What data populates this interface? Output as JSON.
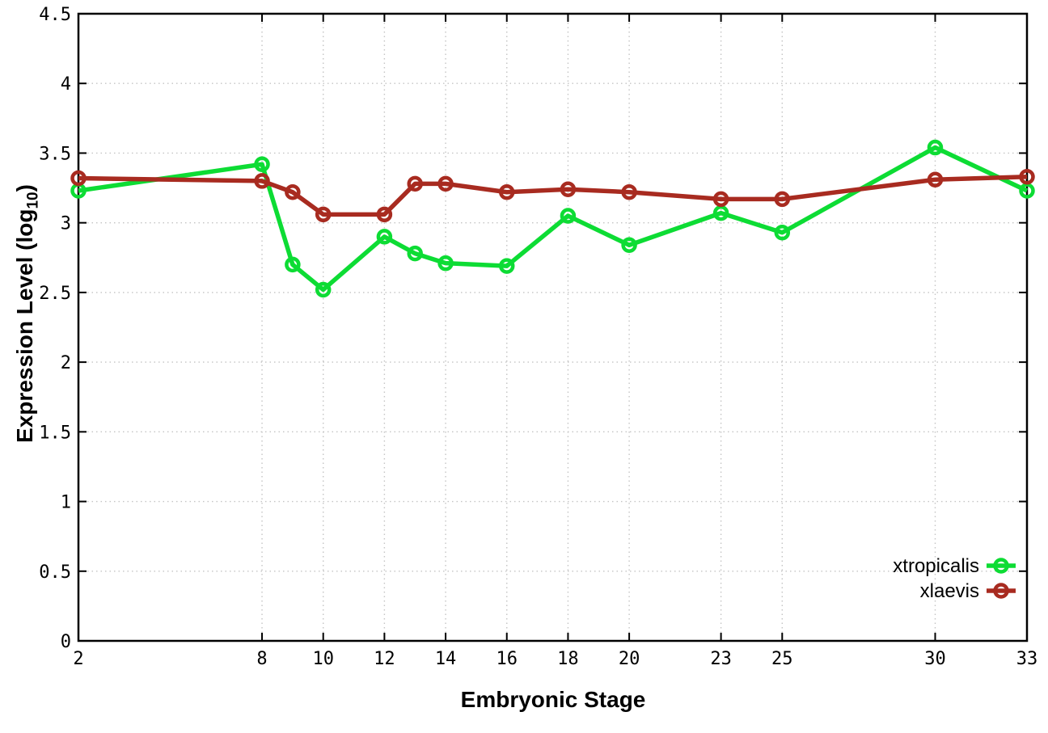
{
  "chart_data": {
    "type": "line",
    "xlabel": "Embryonic Stage",
    "ylabel": "Expression Level (log10)",
    "ylabel_parts": {
      "main": "Expression Level (log",
      "sub": "10",
      "end": ")"
    },
    "x": [
      2,
      8,
      9,
      10,
      12,
      13,
      14,
      16,
      18,
      20,
      23,
      25,
      30,
      33
    ],
    "series": [
      {
        "name": "xtropicalis",
        "color": "#0ddc34",
        "values": [
          3.23,
          3.42,
          2.7,
          2.52,
          2.9,
          2.78,
          2.71,
          2.69,
          3.05,
          2.84,
          3.07,
          2.93,
          3.54,
          3.23
        ]
      },
      {
        "name": "xlaevis",
        "color": "#a82b20",
        "values": [
          3.32,
          3.3,
          3.22,
          3.06,
          3.06,
          3.28,
          3.28,
          3.22,
          3.24,
          3.22,
          3.17,
          3.17,
          3.31,
          3.33
        ]
      }
    ],
    "xticks": [
      2,
      8,
      10,
      12,
      14,
      16,
      18,
      20,
      23,
      25,
      30,
      33
    ],
    "ytick_labels": [
      "0",
      "0.5",
      "1",
      "1.5",
      "2",
      "2.5",
      "3",
      "3.5",
      "4",
      "4.5"
    ],
    "xlim": [
      2,
      33
    ],
    "ylim": [
      0,
      4.5
    ],
    "grid": true,
    "legend_position": "bottom-right"
  },
  "style": {
    "background": "#ffffff",
    "grid_color": "#c4c4c4",
    "axis_color": "#000000",
    "text_color": "#000000"
  }
}
